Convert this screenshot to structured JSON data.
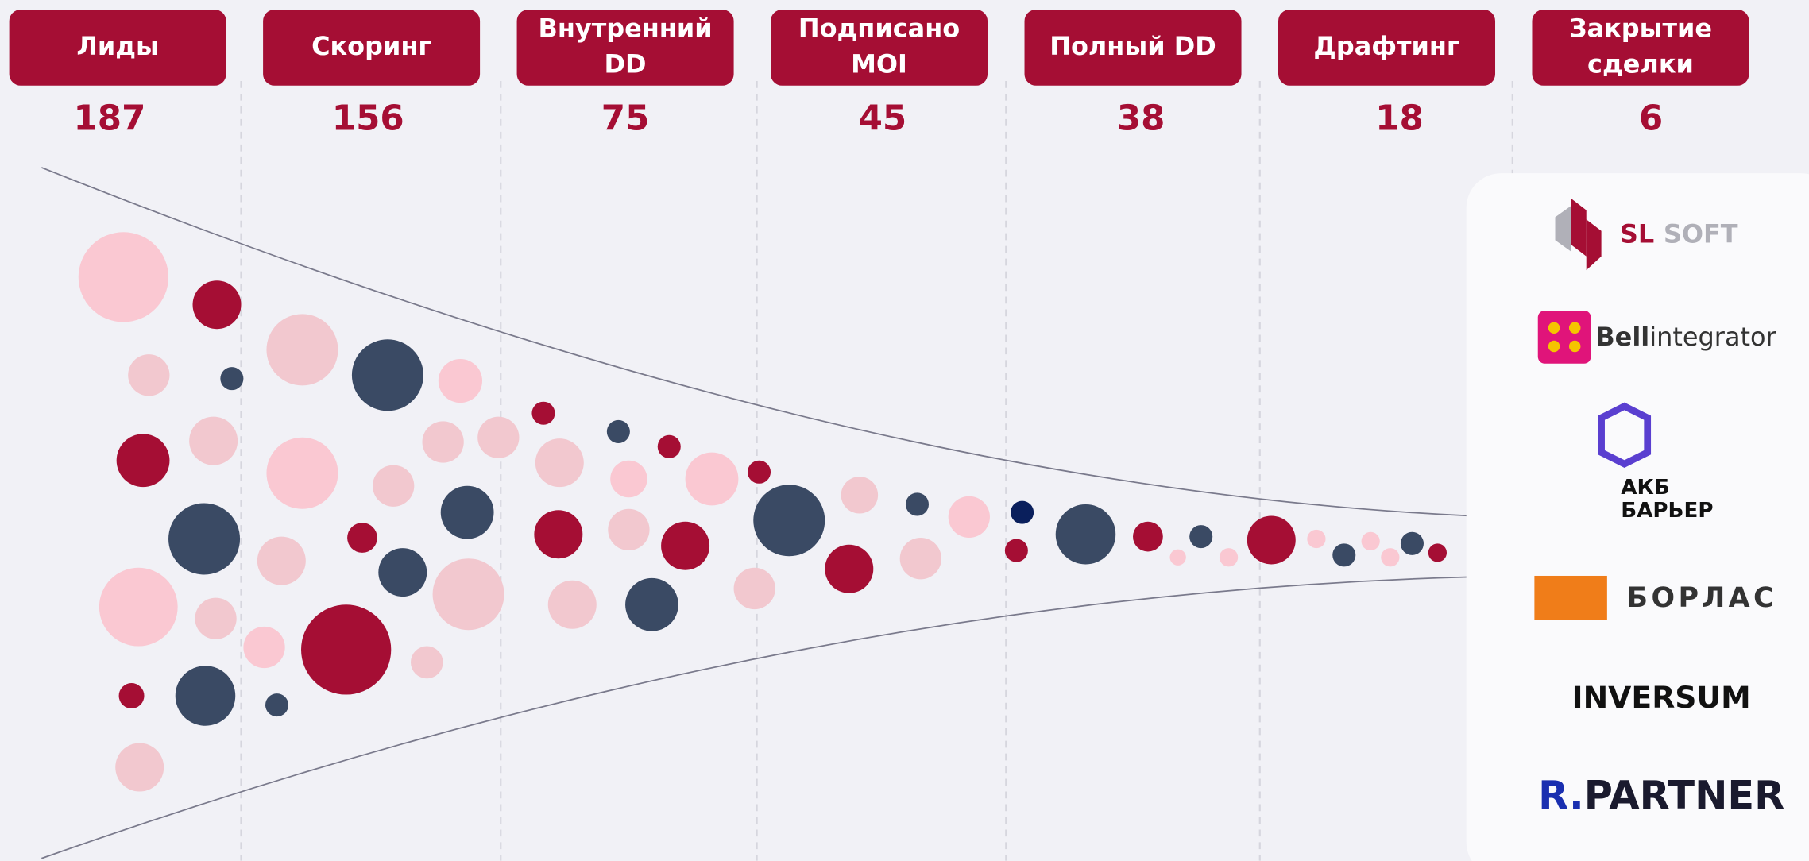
{
  "stages": [
    {
      "label": [
        "Лиды"
      ],
      "count": "187"
    },
    {
      "label": [
        "Скоринг"
      ],
      "count": "156"
    },
    {
      "label": [
        "Внутренний",
        "DD"
      ],
      "count": "75"
    },
    {
      "label": [
        "Подписано",
        "MOI"
      ],
      "count": "45"
    },
    {
      "label": [
        "Полный DD"
      ],
      "count": "38"
    },
    {
      "label": [
        "Драфтинг"
      ],
      "count": "18"
    },
    {
      "label": [
        "Закрытие",
        "сделки"
      ],
      "count": "6"
    }
  ],
  "logos": {
    "sl_soft": [
      "SL",
      "SOFT"
    ],
    "bell": [
      "Bell",
      "integrator"
    ],
    "akb": [
      "АКБ",
      "БАРЬЕР"
    ],
    "borlas": "БОРЛАС",
    "inversum": "INVERSUM",
    "rpartner": [
      "R.",
      "PARTNER"
    ]
  }
}
